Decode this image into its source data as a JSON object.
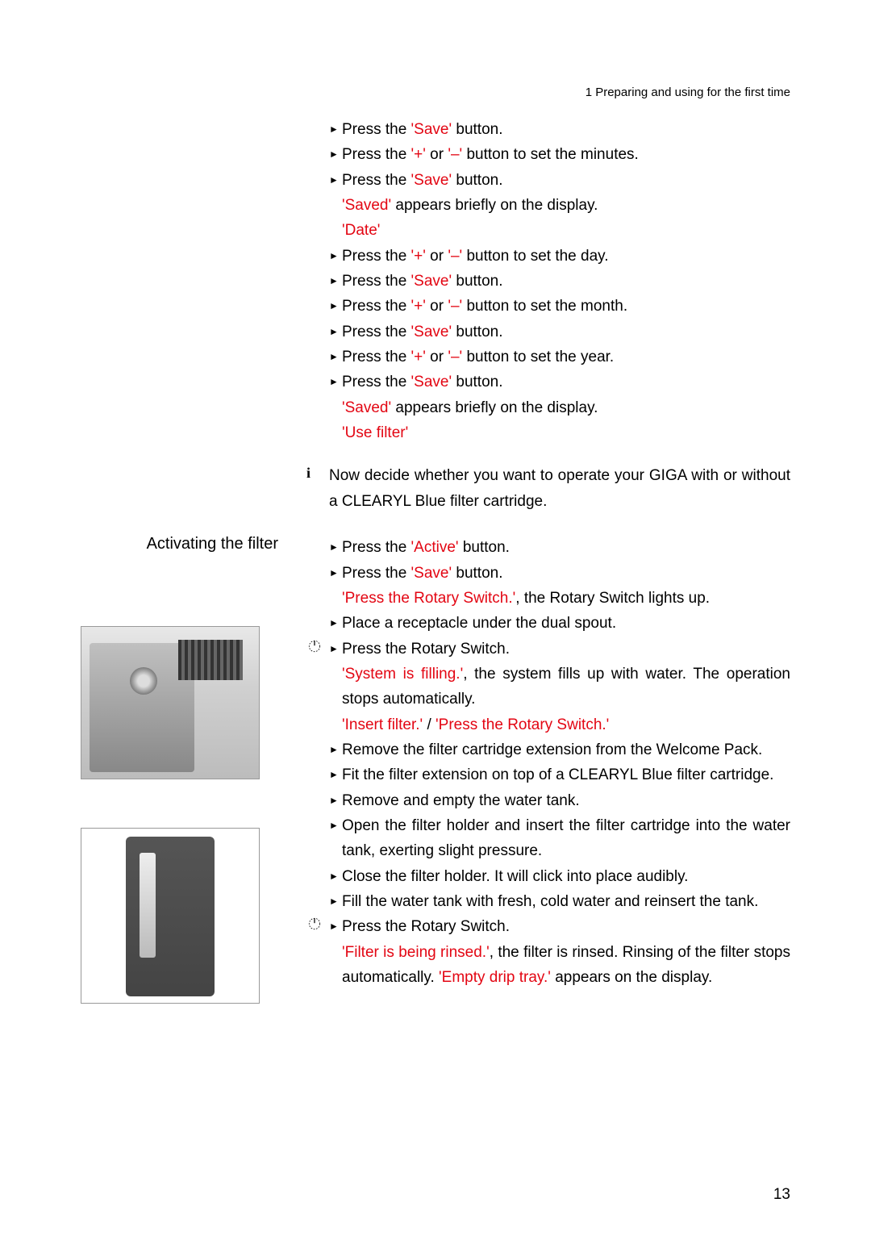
{
  "colors": {
    "accent": "#e30613",
    "text": "#000000",
    "bg": "#ffffff"
  },
  "header": "1   Preparing and using for the first time",
  "pageNumber": "13",
  "subhead": "Activating the filter",
  "list1": [
    {
      "t": "bullet",
      "parts": [
        {
          "s": "Press the "
        },
        {
          "s": "'Save'",
          "c": "red"
        },
        {
          "s": " button."
        }
      ]
    },
    {
      "t": "bullet",
      "parts": [
        {
          "s": "Press the "
        },
        {
          "s": "'+'",
          "c": "red"
        },
        {
          "s": " or "
        },
        {
          "s": "'–'",
          "c": "red"
        },
        {
          "s": " button to set the minutes."
        }
      ]
    },
    {
      "t": "bullet",
      "parts": [
        {
          "s": "Press the "
        },
        {
          "s": "'Save'",
          "c": "red"
        },
        {
          "s": " button."
        }
      ]
    },
    {
      "t": "indent",
      "parts": [
        {
          "s": "'Saved'",
          "c": "red"
        },
        {
          "s": " appears briefly on the display."
        }
      ]
    },
    {
      "t": "indent",
      "parts": [
        {
          "s": "'Date'",
          "c": "red"
        }
      ]
    },
    {
      "t": "bullet",
      "parts": [
        {
          "s": "Press the "
        },
        {
          "s": "'+'",
          "c": "red"
        },
        {
          "s": " or "
        },
        {
          "s": "'–'",
          "c": "red"
        },
        {
          "s": " button to set the day."
        }
      ]
    },
    {
      "t": "bullet",
      "parts": [
        {
          "s": "Press the "
        },
        {
          "s": "'Save'",
          "c": "red"
        },
        {
          "s": " button."
        }
      ]
    },
    {
      "t": "bullet",
      "parts": [
        {
          "s": "Press the "
        },
        {
          "s": "'+'",
          "c": "red"
        },
        {
          "s": " or "
        },
        {
          "s": "'–'",
          "c": "red"
        },
        {
          "s": " button to set the month."
        }
      ]
    },
    {
      "t": "bullet",
      "parts": [
        {
          "s": "Press the "
        },
        {
          "s": "'Save'",
          "c": "red"
        },
        {
          "s": " button."
        }
      ]
    },
    {
      "t": "bullet",
      "parts": [
        {
          "s": "Press the "
        },
        {
          "s": "'+'",
          "c": "red"
        },
        {
          "s": " or "
        },
        {
          "s": "'–'",
          "c": "red"
        },
        {
          "s": " button to set the year."
        }
      ]
    },
    {
      "t": "bullet",
      "parts": [
        {
          "s": "Press the "
        },
        {
          "s": "'Save'",
          "c": "red"
        },
        {
          "s": " button."
        }
      ]
    },
    {
      "t": "indent",
      "parts": [
        {
          "s": "'Saved'",
          "c": "red"
        },
        {
          "s": " appears briefly on the display."
        }
      ]
    },
    {
      "t": "indent",
      "parts": [
        {
          "s": "'Use filter'",
          "c": "red"
        }
      ]
    }
  ],
  "infoNote": "Now decide whether you want to operate your GIGA with or without a CLEARYL Blue filter cartridge.",
  "list2": [
    {
      "t": "bullet",
      "icon": null,
      "parts": [
        {
          "s": "Press the "
        },
        {
          "s": "'Active'",
          "c": "red"
        },
        {
          "s": " button."
        }
      ]
    },
    {
      "t": "bullet",
      "icon": null,
      "parts": [
        {
          "s": "Press the "
        },
        {
          "s": "'Save'",
          "c": "red"
        },
        {
          "s": " button."
        }
      ]
    },
    {
      "t": "indent",
      "icon": null,
      "parts": [
        {
          "s": "'Press the Rotary Switch.'",
          "c": "red"
        },
        {
          "s": ", the Rotary Switch lights up."
        }
      ]
    },
    {
      "t": "bullet",
      "icon": null,
      "parts": [
        {
          "s": "Place a receptacle under the dual spout."
        }
      ]
    },
    {
      "t": "bullet",
      "icon": "rotary",
      "parts": [
        {
          "s": "Press the Rotary Switch."
        }
      ]
    },
    {
      "t": "indent",
      "icon": null,
      "justify": true,
      "parts": [
        {
          "s": "'System is filling.'",
          "c": "red"
        },
        {
          "s": ", the system fills up with water. The operation stops automatically."
        }
      ]
    },
    {
      "t": "indent",
      "icon": null,
      "parts": [
        {
          "s": "'Insert filter.'",
          "c": "red"
        },
        {
          "s": " / "
        },
        {
          "s": "'Press the Rotary Switch.'",
          "c": "red"
        }
      ]
    },
    {
      "t": "bullet",
      "icon": null,
      "justify": true,
      "parts": [
        {
          "s": "Remove the filter cartridge extension from the Welcome Pack."
        }
      ]
    },
    {
      "t": "bullet",
      "icon": null,
      "justify": true,
      "parts": [
        {
          "s": "Fit the filter extension on top of a CLEARYL Blue filter cartridge."
        }
      ]
    },
    {
      "t": "bullet",
      "icon": null,
      "parts": [
        {
          "s": "Remove and empty the water tank."
        }
      ]
    },
    {
      "t": "bullet",
      "icon": null,
      "justify": true,
      "parts": [
        {
          "s": "Open the filter holder and insert the filter cartridge into the water tank, exerting slight pressure."
        }
      ]
    },
    {
      "t": "bullet",
      "icon": null,
      "parts": [
        {
          "s": "Close the filter holder. It will click into place audibly."
        }
      ]
    },
    {
      "t": "bullet",
      "icon": null,
      "justify": true,
      "parts": [
        {
          "s": "Fill the water tank with fresh, cold water and reinsert the tank."
        }
      ]
    },
    {
      "t": "bullet",
      "icon": "rotary",
      "parts": [
        {
          "s": "Press the Rotary Switch."
        }
      ]
    },
    {
      "t": "indent",
      "icon": null,
      "justify": true,
      "parts": [
        {
          "s": "'Filter is being rinsed.'",
          "c": "red"
        },
        {
          "s": ", the filter is rinsed. Rinsing of the filter stops automatically. "
        },
        {
          "s": "'Empty drip tray.'",
          "c": "red"
        },
        {
          "s": " appears on the display."
        }
      ]
    }
  ]
}
